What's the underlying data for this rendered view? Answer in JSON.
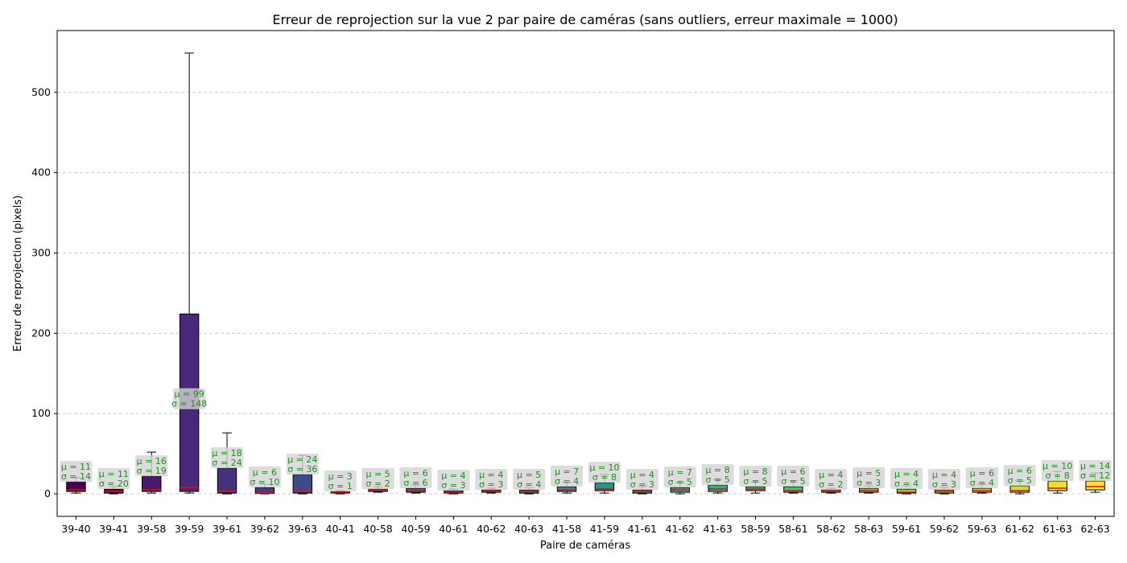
{
  "chart_data": {
    "type": "box",
    "title": "Erreur de reprojection sur la vue 2 par paire de caméras (sans outliers, erreur maximale = 1000)",
    "xlabel": "Paire de caméras",
    "ylabel": "Erreur de reprojection (pixels)",
    "ylim": [
      -28,
      577
    ],
    "yticks": [
      0,
      100,
      200,
      300,
      400,
      500
    ],
    "grid": "horizontal dashed",
    "colormap": "viridis",
    "median_color": "#ff0000",
    "annotation_color": "#228B22",
    "categories": [
      "39-40",
      "39-41",
      "39-58",
      "39-59",
      "39-61",
      "39-62",
      "39-63",
      "40-41",
      "40-58",
      "40-59",
      "40-61",
      "40-62",
      "40-63",
      "41-58",
      "41-59",
      "41-61",
      "41-62",
      "41-63",
      "58-59",
      "58-61",
      "58-62",
      "58-63",
      "59-61",
      "59-62",
      "59-63",
      "61-62",
      "61-63",
      "62-63"
    ],
    "boxes": [
      {
        "whislo": 1,
        "q1": 3,
        "med": 5,
        "q3": 15,
        "whishi": 20,
        "mean_label": "μ = 11",
        "std_label": "σ = 14"
      },
      {
        "whislo": 0,
        "q1": 1,
        "med": 3,
        "q3": 6,
        "whishi": 9,
        "mean_label": "μ = 11",
        "std_label": "σ = 20"
      },
      {
        "whislo": 1,
        "q1": 3,
        "med": 5,
        "q3": 22,
        "whishi": 52,
        "mean_label": "μ = 16",
        "std_label": "σ = 19"
      },
      {
        "whislo": 1,
        "q1": 3,
        "med": 8,
        "q3": 224,
        "whishi": 549,
        "mean_label": "μ = 99",
        "std_label": "σ = 148"
      },
      {
        "whislo": 0,
        "q1": 1,
        "med": 3,
        "q3": 32,
        "whishi": 76,
        "mean_label": "μ = 18",
        "std_label": "σ = 24"
      },
      {
        "whislo": 0,
        "q1": 0.5,
        "med": 1,
        "q3": 8,
        "whishi": 12,
        "mean_label": "μ = 6",
        "std_label": "σ = 10"
      },
      {
        "whislo": 0,
        "q1": 1,
        "med": 3,
        "q3": 24,
        "whishi": 48,
        "mean_label": "μ = 24",
        "std_label": "σ = 36"
      },
      {
        "whislo": 0,
        "q1": 1,
        "med": 2,
        "q3": 3,
        "whishi": 4,
        "mean_label": "μ = 3",
        "std_label": "σ = 1"
      },
      {
        "whislo": 2,
        "q1": 3,
        "med": 5,
        "q3": 6,
        "whishi": 9,
        "mean_label": "μ = 5",
        "std_label": "σ = 2"
      },
      {
        "whislo": 1,
        "q1": 2,
        "med": 4,
        "q3": 7,
        "whishi": 11,
        "mean_label": "μ = 6",
        "std_label": "σ = 6"
      },
      {
        "whislo": 0,
        "q1": 1,
        "med": 2,
        "q3": 4,
        "whishi": 6,
        "mean_label": "μ = 4",
        "std_label": "σ = 3"
      },
      {
        "whislo": 1,
        "q1": 2,
        "med": 3,
        "q3": 5,
        "whishi": 7,
        "mean_label": "μ = 4",
        "std_label": "σ = 3"
      },
      {
        "whislo": 0,
        "q1": 1,
        "med": 3,
        "q3": 5,
        "whishi": 8,
        "mean_label": "μ = 5",
        "std_label": "σ = 4"
      },
      {
        "whislo": 1,
        "q1": 3,
        "med": 5,
        "q3": 9,
        "whishi": 14,
        "mean_label": "μ = 7",
        "std_label": "σ = 4"
      },
      {
        "whislo": 1,
        "q1": 4,
        "med": 6,
        "q3": 14,
        "whishi": 24,
        "mean_label": "μ = 10",
        "std_label": "σ = 8"
      },
      {
        "whislo": 0,
        "q1": 1,
        "med": 3,
        "q3": 5,
        "whishi": 9,
        "mean_label": "μ = 4",
        "std_label": "σ = 3"
      },
      {
        "whislo": 0,
        "q1": 2,
        "med": 5,
        "q3": 8,
        "whishi": 14,
        "mean_label": "μ = 7",
        "std_label": "σ = 5"
      },
      {
        "whislo": 1,
        "q1": 3,
        "med": 6,
        "q3": 11,
        "whishi": 18,
        "mean_label": "μ = 8",
        "std_label": "σ = 5"
      },
      {
        "whislo": 1,
        "q1": 4,
        "med": 6,
        "q3": 9,
        "whishi": 15,
        "mean_label": "μ = 8",
        "std_label": "σ = 5"
      },
      {
        "whislo": 1,
        "q1": 2,
        "med": 4,
        "q3": 9,
        "whishi": 16,
        "mean_label": "μ = 6",
        "std_label": "σ = 5"
      },
      {
        "whislo": 1,
        "q1": 2,
        "med": 3,
        "q3": 5,
        "whishi": 7,
        "mean_label": "μ = 4",
        "std_label": "σ = 2"
      },
      {
        "whislo": 1,
        "q1": 2,
        "med": 4,
        "q3": 7,
        "whishi": 10,
        "mean_label": "μ = 5",
        "std_label": "σ = 3"
      },
      {
        "whislo": 0,
        "q1": 1,
        "med": 2,
        "q3": 6,
        "whishi": 10,
        "mean_label": "μ = 4",
        "std_label": "σ = 4"
      },
      {
        "whislo": 0,
        "q1": 1,
        "med": 3,
        "q3": 5,
        "whishi": 8,
        "mean_label": "μ = 4",
        "std_label": "σ = 3"
      },
      {
        "whislo": 1,
        "q1": 2,
        "med": 4,
        "q3": 7,
        "whishi": 12,
        "mean_label": "μ = 6",
        "std_label": "σ = 4"
      },
      {
        "whislo": 0,
        "q1": 2,
        "med": 4,
        "q3": 10,
        "whishi": 16,
        "mean_label": "μ = 6",
        "std_label": "σ = 5"
      },
      {
        "whislo": 1,
        "q1": 4,
        "med": 7,
        "q3": 16,
        "whishi": 28,
        "mean_label": "μ = 10",
        "std_label": "σ = 8"
      },
      {
        "whislo": 2,
        "q1": 5,
        "med": 9,
        "q3": 16,
        "whishi": 26,
        "mean_label": "μ = 14",
        "std_label": "σ = 12"
      }
    ]
  }
}
